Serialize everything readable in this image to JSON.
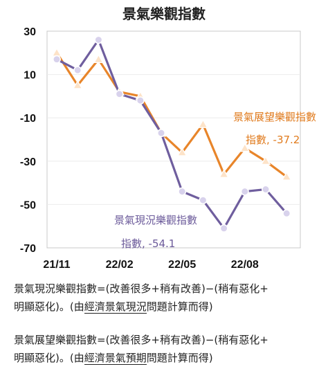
{
  "chart_data": {
    "type": "line",
    "title": "景氣樂觀指數",
    "x": [
      "21/11",
      "21/12",
      "22/01",
      "22/02",
      "22/03",
      "22/04",
      "22/05",
      "22/06",
      "22/07",
      "22/08",
      "22/09",
      "22/10"
    ],
    "xtick_labels": [
      "21/11",
      "22/02",
      "22/05",
      "22/08"
    ],
    "ylim": [
      -70,
      30
    ],
    "yticks": [
      30,
      10,
      -10,
      -30,
      -50,
      -70
    ],
    "series": [
      {
        "name": "景氣展望樂觀指數",
        "color": "#e8852a",
        "marker": "triangle",
        "values": [
          20,
          5,
          17,
          2,
          0,
          -17,
          -26,
          -13,
          -36,
          -24,
          -30,
          -37.2
        ],
        "end_label": "指數, -37.2"
      },
      {
        "name": "景氣現況樂觀指數",
        "color": "#6f5e9e",
        "marker": "circle",
        "values": [
          17,
          12,
          26,
          1,
          -2,
          -17,
          -44,
          -48,
          -61,
          -44,
          -43,
          -54.1
        ],
        "end_label": "指數, -54.1"
      }
    ]
  },
  "notes": {
    "current_formula_line1": "景氣現況樂觀指數=(改善很多+稍有改善)−(稍有惡化+",
    "current_formula_line2_pre": "明顯惡化)。(由",
    "current_formula_line2_ul": "經濟景氣現況",
    "current_formula_line2_post": "問題計算而得)",
    "outlook_formula_line1": "景氣展望樂觀指數=(改善很多+稍有改善)−(稍有惡化+",
    "outlook_formula_line2_pre": "明顯惡化)。(由",
    "outlook_formula_line2_ul": "經濟景氣預期",
    "outlook_formula_line2_post": "問題計算而得)"
  }
}
